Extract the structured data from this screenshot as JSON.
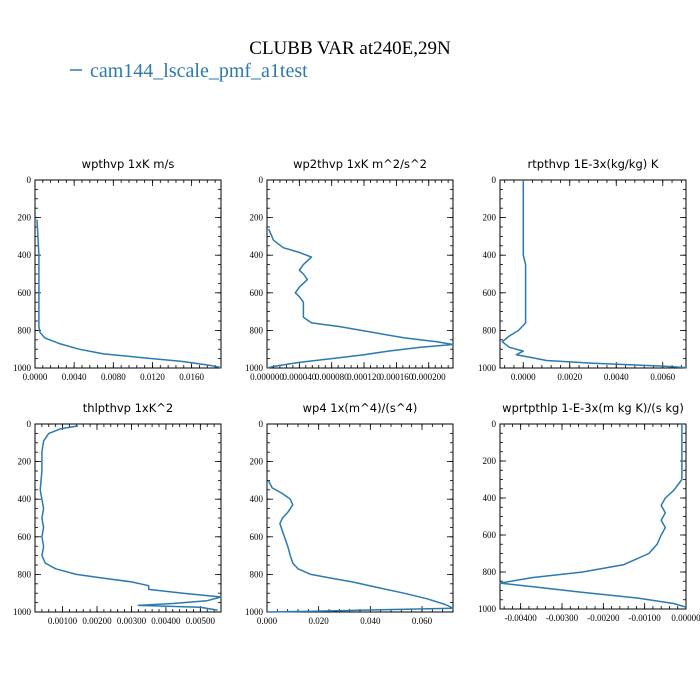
{
  "figure": {
    "title": "CLUBB VAR at240E,29N",
    "legend": [
      {
        "label": "cam144_lscale_pmf_a1test",
        "color": "#2a7ab0"
      }
    ]
  },
  "chart_data": [
    {
      "type": "line",
      "title": "wpthvp  1xK m/s",
      "xlim": [
        0,
        0.019
      ],
      "ylim": [
        0,
        1000
      ],
      "y_inverted": true,
      "xticks": [
        0,
        0.004,
        0.008,
        0.012,
        0.016
      ],
      "xtick_labels": [
        "0.0000",
        "0.0040",
        "0.0080",
        "0.0120",
        "0.0160"
      ],
      "yticks": [
        0,
        200,
        400,
        600,
        800,
        1000
      ],
      "ytick_labels": [
        "0",
        "200",
        "400",
        "600",
        "800",
        "1000"
      ],
      "series": [
        {
          "color": "#2a7ab0",
          "points": [
            [
              0.0002,
              210
            ],
            [
              0.0003,
              300
            ],
            [
              0.0004,
              400
            ],
            [
              0.0004,
              500
            ],
            [
              0.0004,
              600
            ],
            [
              0.0004,
              700
            ],
            [
              0.0004,
              780
            ],
            [
              0.0005,
              810
            ],
            [
              0.001,
              840
            ],
            [
              0.0025,
              870
            ],
            [
              0.0045,
              900
            ],
            [
              0.007,
              925
            ],
            [
              0.011,
              945
            ],
            [
              0.015,
              965
            ],
            [
              0.0178,
              985
            ],
            [
              0.019,
              998
            ]
          ]
        }
      ]
    },
    {
      "type": "line",
      "title": "wp2thvp  1xK m^2/s^2",
      "xlim": [
        0,
        0.00023
      ],
      "ylim": [
        0,
        1000
      ],
      "y_inverted": true,
      "xticks": [
        0,
        4e-05,
        8e-05,
        0.00012,
        0.00016,
        0.0002
      ],
      "xtick_labels": [
        "0.000000",
        "0.000040",
        "0.000080",
        "0.000120",
        "0.000160",
        "0.000200"
      ],
      "yticks": [
        0,
        200,
        400,
        600,
        800,
        1000
      ],
      "ytick_labels": [
        "0",
        "200",
        "400",
        "600",
        "800",
        "1000"
      ],
      "series": [
        {
          "color": "#2a7ab0",
          "points": [
            [
              2e-06,
              260
            ],
            [
              8e-06,
              320
            ],
            [
              2e-05,
              360
            ],
            [
              4e-05,
              385
            ],
            [
              5.5e-05,
              410
            ],
            [
              4.5e-05,
              450
            ],
            [
              4e-05,
              480
            ],
            [
              4.5e-05,
              500
            ],
            [
              5e-05,
              530
            ],
            [
              4e-05,
              570
            ],
            [
              3.5e-05,
              600
            ],
            [
              4e-05,
              620
            ],
            [
              4.5e-05,
              650
            ],
            [
              4.5e-05,
              700
            ],
            [
              4.5e-05,
              730
            ],
            [
              5.5e-05,
              760
            ],
            [
              9e-05,
              780
            ],
            [
              0.00013,
              810
            ],
            [
              0.00017,
              840
            ],
            [
              0.00021,
              860
            ],
            [
              0.00023,
              875
            ],
            [
              0.00019,
              890
            ],
            [
              0.00015,
              910
            ],
            [
              0.00012,
              930
            ],
            [
              8e-05,
              950
            ],
            [
              4e-05,
              970
            ],
            [
              1e-05,
              990
            ],
            [
              0,
              1000
            ]
          ]
        }
      ]
    },
    {
      "type": "line",
      "title": "rtpthvp  1E-3x(kg/kg) K",
      "xlim": [
        -0.001,
        0.007
      ],
      "ylim": [
        0,
        1000
      ],
      "y_inverted": true,
      "xticks": [
        0,
        0.002,
        0.004,
        0.006
      ],
      "xtick_labels": [
        "0.0000",
        "0.0020",
        "0.0040",
        "0.0060"
      ],
      "yticks": [
        0,
        200,
        400,
        600,
        800,
        1000
      ],
      "ytick_labels": [
        "0",
        "200",
        "400",
        "600",
        "800",
        "1000"
      ],
      "series": [
        {
          "color": "#2a7ab0",
          "points": [
            [
              0,
              0
            ],
            [
              0,
              100
            ],
            [
              0,
              200
            ],
            [
              0,
              300
            ],
            [
              0,
              400
            ],
            [
              0.0001,
              450
            ],
            [
              0.0001,
              500
            ],
            [
              0.0001,
              600
            ],
            [
              0.0001,
              700
            ],
            [
              0.0001,
              760
            ],
            [
              -0.0002,
              800
            ],
            [
              -0.0006,
              830
            ],
            [
              -0.0009,
              860
            ],
            [
              -0.0006,
              890
            ],
            [
              0,
              910
            ],
            [
              -0.0003,
              930
            ],
            [
              0.0004,
              945
            ],
            [
              0.001,
              960
            ],
            [
              0.003,
              975
            ],
            [
              0.006,
              990
            ],
            [
              0.007,
              998
            ]
          ]
        }
      ]
    },
    {
      "type": "line",
      "title": "thlpthvp  1xK^2",
      "xlim": [
        0.0002,
        0.0056
      ],
      "ylim": [
        0,
        1000
      ],
      "y_inverted": true,
      "xticks": [
        0.001,
        0.002,
        0.003,
        0.004,
        0.005
      ],
      "xtick_labels": [
        "0.00100",
        "0.00200",
        "0.00300",
        "0.00400",
        "0.00500"
      ],
      "yticks": [
        0,
        200,
        400,
        600,
        800,
        1000
      ],
      "ytick_labels": [
        "0",
        "200",
        "400",
        "600",
        "800",
        "1000"
      ],
      "series": [
        {
          "color": "#2a7ab0",
          "points": [
            [
              0.00145,
              10
            ],
            [
              0.00095,
              25
            ],
            [
              0.0006,
              50
            ],
            [
              0.00045,
              90
            ],
            [
              0.0004,
              150
            ],
            [
              0.0004,
              250
            ],
            [
              0.00035,
              350
            ],
            [
              0.0004,
              400
            ],
            [
              0.00045,
              450
            ],
            [
              0.0004,
              500
            ],
            [
              0.00045,
              550
            ],
            [
              0.0004,
              600
            ],
            [
              0.00045,
              650
            ],
            [
              0.0004,
              700
            ],
            [
              0.0005,
              740
            ],
            [
              0.0008,
              770
            ],
            [
              0.0014,
              800
            ],
            [
              0.0022,
              820
            ],
            [
              0.003,
              840
            ],
            [
              0.0035,
              860
            ],
            [
              0.0035,
              880
            ],
            [
              0.0045,
              900
            ],
            [
              0.0056,
              920
            ],
            [
              0.0052,
              940
            ],
            [
              0.0042,
              955
            ],
            [
              0.0032,
              965
            ],
            [
              0.005,
              975
            ],
            [
              0.0055,
              990
            ]
          ]
        }
      ]
    },
    {
      "type": "line",
      "title": "wp4  1x(m^4)/(s^4)",
      "xlim": [
        0,
        0.072
      ],
      "ylim": [
        0,
        1000
      ],
      "y_inverted": true,
      "xticks": [
        0,
        0.02,
        0.04,
        0.06
      ],
      "xtick_labels": [
        "0.000",
        "0.020",
        "0.040",
        "0.060"
      ],
      "yticks": [
        0,
        200,
        400,
        600,
        800,
        1000
      ],
      "ytick_labels": [
        "0",
        "200",
        "400",
        "600",
        "800",
        "1000"
      ],
      "series": [
        {
          "color": "#2a7ab0",
          "points": [
            [
              0.0005,
              300
            ],
            [
              0.002,
              340
            ],
            [
              0.006,
              370
            ],
            [
              0.009,
              400
            ],
            [
              0.01,
              430
            ],
            [
              0.008,
              470
            ],
            [
              0.006,
              500
            ],
            [
              0.005,
              530
            ],
            [
              0.006,
              570
            ],
            [
              0.007,
              610
            ],
            [
              0.008,
              650
            ],
            [
              0.009,
              700
            ],
            [
              0.01,
              740
            ],
            [
              0.012,
              770
            ],
            [
              0.017,
              800
            ],
            [
              0.025,
              820
            ],
            [
              0.033,
              840
            ],
            [
              0.043,
              870
            ],
            [
              0.053,
              900
            ],
            [
              0.062,
              930
            ],
            [
              0.069,
              960
            ],
            [
              0.072,
              980
            ],
            [
              0.02,
              995
            ],
            [
              0,
              1000
            ]
          ]
        }
      ]
    },
    {
      "type": "line",
      "title": "wprtpthlp  1-E-3x(m kg K)/(s kg)",
      "xlim": [
        -0.0045,
        0
      ],
      "ylim": [
        0,
        1000
      ],
      "y_inverted": true,
      "xticks": [
        -0.004,
        -0.003,
        -0.002,
        -0.001,
        0
      ],
      "xtick_labels": [
        "-0.00400",
        "-0.00300",
        "-0.00200",
        "-0.00100",
        "0.00000"
      ],
      "yticks": [
        0,
        200,
        400,
        600,
        800,
        1000
      ],
      "ytick_labels": [
        "0",
        "200",
        "400",
        "600",
        "800",
        "1000"
      ],
      "series": [
        {
          "color": "#2a7ab0",
          "points": [
            [
              -0.0001,
              0
            ],
            [
              -0.0001,
              100
            ],
            [
              -0.0001,
              200
            ],
            [
              -0.0001,
              300
            ],
            [
              -0.0003,
              360
            ],
            [
              -0.0005,
              400
            ],
            [
              -0.0006,
              440
            ],
            [
              -0.0005,
              480
            ],
            [
              -0.0006,
              520
            ],
            [
              -0.0005,
              560
            ],
            [
              -0.0006,
              600
            ],
            [
              -0.0007,
              650
            ],
            [
              -0.0009,
              700
            ],
            [
              -0.0015,
              760
            ],
            [
              -0.0025,
              800
            ],
            [
              -0.0037,
              830
            ],
            [
              -0.0045,
              860
            ],
            [
              -0.0037,
              880
            ],
            [
              -0.0025,
              910
            ],
            [
              -0.0012,
              940
            ],
            [
              -0.0003,
              970
            ],
            [
              0,
              990
            ]
          ]
        }
      ]
    }
  ]
}
